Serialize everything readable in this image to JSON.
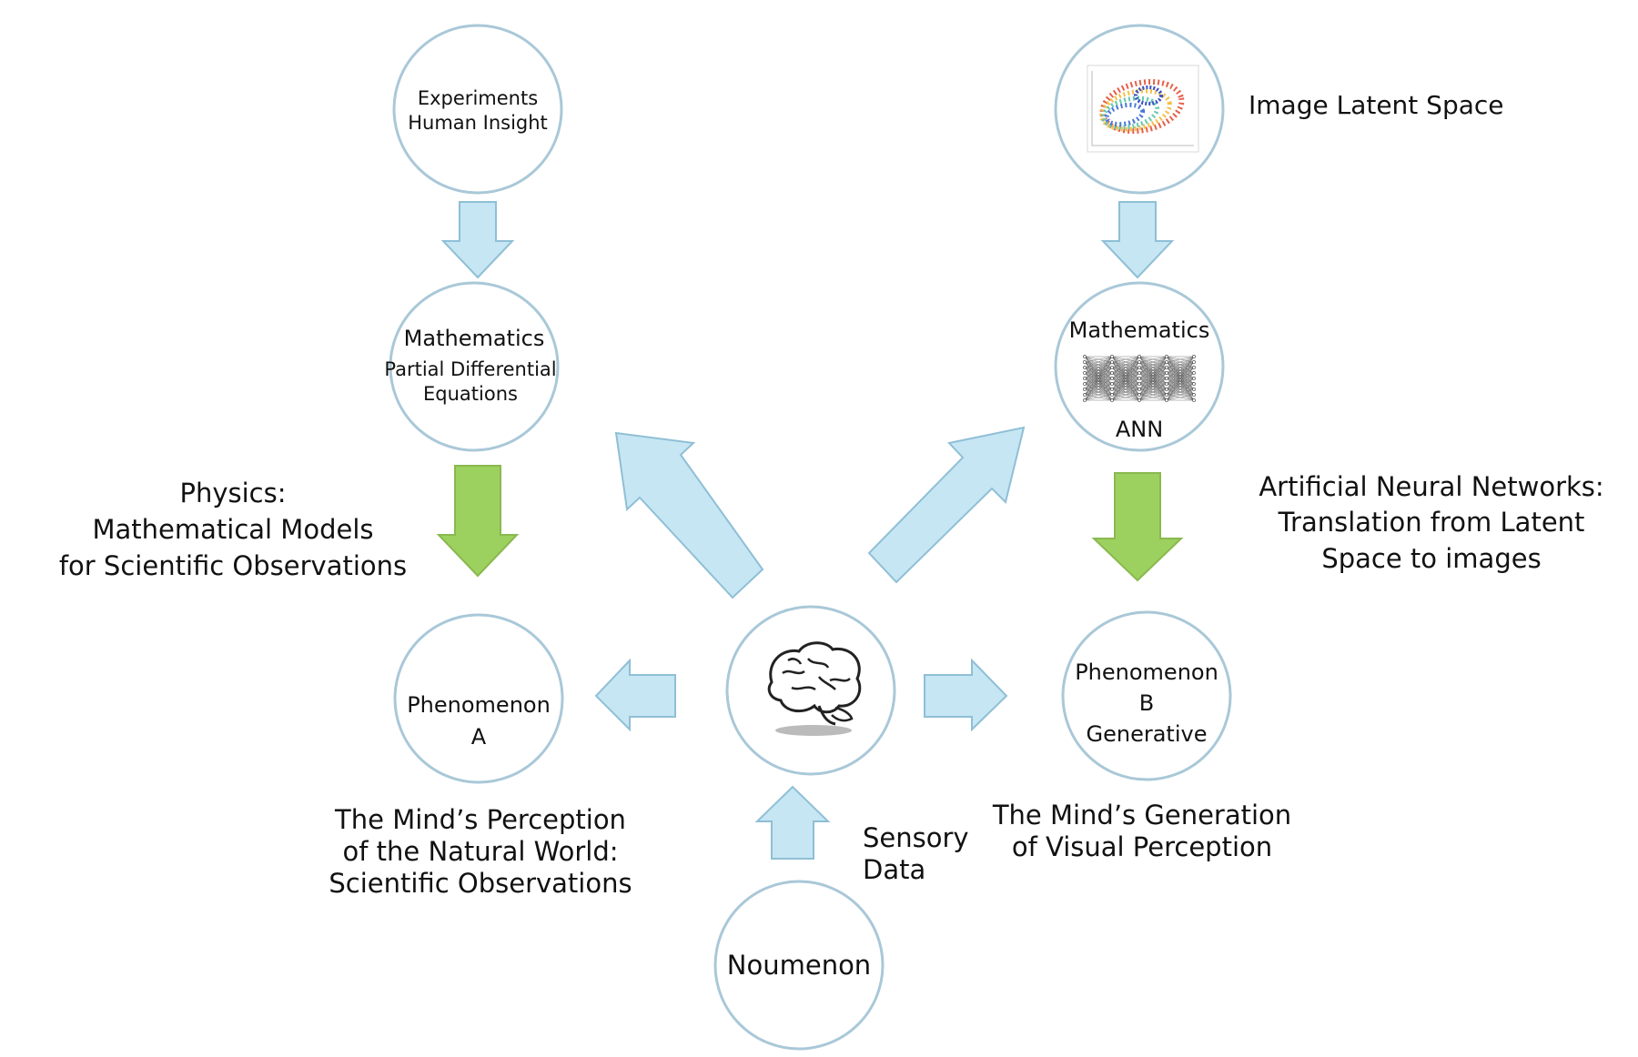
{
  "nodes": {
    "experiments": {
      "line1": "Experiments",
      "line2": "Human Insight"
    },
    "math_left": {
      "title": "Mathematics",
      "sub1": "Partial Differential",
      "sub2": "Equations"
    },
    "phenomenon_a": {
      "line1": "Phenomenon",
      "line2": "A"
    },
    "image_latent_thumb": {
      "icon": "latent-space-scatter-icon"
    },
    "math_right": {
      "title": "Mathematics",
      "sub": "ANN",
      "icon": "neural-network-icon"
    },
    "phenomenon_b": {
      "line1": "Phenomenon",
      "line2": "B",
      "line3": "Generative"
    },
    "mind": {
      "icon": "brain-icon"
    },
    "noumenon": {
      "label": "Noumenon"
    }
  },
  "labels": {
    "image_latent_space": "Image Latent Space",
    "physics": {
      "line1": "Physics:",
      "line2": "Mathematical Models",
      "line3": "for Scientific Observations"
    },
    "ann": {
      "line1": "Artificial Neural Networks:",
      "line2": "Translation from Latent",
      "line3": "Space to images"
    },
    "perception": {
      "line1": "The Mind’s Perception",
      "line2": "of the Natural World:",
      "line3": "Scientific Observations"
    },
    "generation": {
      "line1": "The Mind’s Generation",
      "line2": "of Visual Perception"
    },
    "sensory": {
      "line1": "Sensory",
      "line2": "Data"
    }
  },
  "colors": {
    "node_stroke": "#a9c8d8",
    "arrow_blue": "#c6e6f3",
    "arrow_green": "#9dd15f"
  }
}
